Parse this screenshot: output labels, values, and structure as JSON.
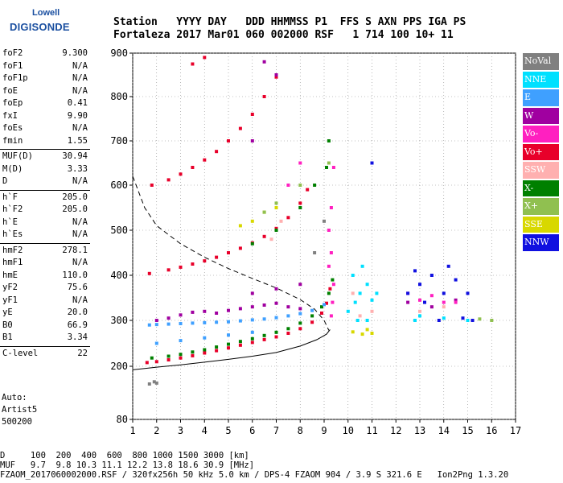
{
  "logo": {
    "line1": "Lowell",
    "line2": "DIGISONDE"
  },
  "header": {
    "labels": "Station   YYYY DAY   DDD HHMMSS P1  FFS S AXN PPS IGA PS",
    "values": "Fortaleza 2017 Mar01 060 002000 RSF   1 714 100 10+ 11"
  },
  "params": {
    "group1": [
      {
        "name": "foF2",
        "value": "9.300"
      },
      {
        "name": "foF1",
        "value": "N/A"
      },
      {
        "name": "foF1p",
        "value": "N/A"
      },
      {
        "name": "foE",
        "value": "N/A"
      },
      {
        "name": "foEp",
        "value": "0.41"
      },
      {
        "name": "fxI",
        "value": "9.90"
      },
      {
        "name": "foEs",
        "value": "N/A"
      },
      {
        "name": "fmin",
        "value": "1.55"
      }
    ],
    "group2": [
      {
        "name": "MUF(D)",
        "value": "30.94"
      },
      {
        "name": "M(D)",
        "value": "3.33"
      },
      {
        "name": "D",
        "value": "N/A"
      }
    ],
    "group3": [
      {
        "name": "h`F",
        "value": "205.0"
      },
      {
        "name": "h`F2",
        "value": "205.0"
      },
      {
        "name": "h`E",
        "value": "N/A"
      },
      {
        "name": "h`Es",
        "value": "N/A"
      }
    ],
    "group4": [
      {
        "name": "hmF2",
        "value": "278.1"
      },
      {
        "name": "hmF1",
        "value": "N/A"
      },
      {
        "name": "hmE",
        "value": "110.0"
      },
      {
        "name": "yF2",
        "value": "75.6"
      },
      {
        "name": "yF1",
        "value": "N/A"
      },
      {
        "name": "yE",
        "value": "20.0"
      },
      {
        "name": "B0",
        "value": "66.9"
      },
      {
        "name": "B1",
        "value": "3.34"
      }
    ],
    "group5": [
      {
        "name": "C-level",
        "value": "22"
      }
    ]
  },
  "auto": {
    "line1": "Auto:",
    "line2": "Artist5",
    "line3": "500200"
  },
  "legend": [
    {
      "label": "NoVal",
      "color": "#808080"
    },
    {
      "label": "NNE",
      "color": "#00e0ff"
    },
    {
      "label": "E",
      "color": "#3fa0ff"
    },
    {
      "label": "W",
      "color": "#a000a0"
    },
    {
      "label": "Vo-",
      "color": "#ff20c0"
    },
    {
      "label": "Vo+",
      "color": "#e8002a"
    },
    {
      "label": "SSW",
      "color": "#ffb0b0"
    },
    {
      "label": "X-",
      "color": "#008000"
    },
    {
      "label": "X+",
      "color": "#90c050"
    },
    {
      "label": "SSE",
      "color": "#d8d800"
    },
    {
      "label": "NNW",
      "color": "#1010e0"
    }
  ],
  "footer": {
    "line1": "D     100  200  400  600  800 1000 1500 3000 [km]",
    "line2": "MUF   9.7  9.8 10.3 11.1 12.2 13.8 18.6 30.9 [MHz]",
    "line3": "FZAOM_2017060002000.RSF / 320fx256h 50 kHz 5.0 km / DPS-4 FZAOM 904 / 3.9 S 321.6 E   Ion2Png 1.3.20"
  },
  "chart_data": {
    "type": "scatter",
    "xlim": [
      1,
      17
    ],
    "ylim": [
      80,
      900
    ],
    "x_ticks": [
      1,
      2,
      3,
      4,
      5,
      6,
      7,
      8,
      9,
      10,
      11,
      12,
      13,
      14,
      15,
      16,
      17
    ],
    "y_ticks": [
      80,
      200,
      300,
      400,
      500,
      600,
      700,
      800,
      900
    ],
    "grid": true,
    "series": [
      {
        "name": "Vo+",
        "color": "#e8002a",
        "points": [
          [
            1.6,
            208
          ],
          [
            2.0,
            210
          ],
          [
            2.5,
            214
          ],
          [
            3.0,
            218
          ],
          [
            3.5,
            223
          ],
          [
            4.0,
            229
          ],
          [
            4.5,
            234
          ],
          [
            5.0,
            240
          ],
          [
            5.5,
            246
          ],
          [
            6.0,
            252
          ],
          [
            6.5,
            258
          ],
          [
            7.0,
            264
          ],
          [
            7.5,
            272
          ],
          [
            8.0,
            282
          ],
          [
            8.5,
            296
          ],
          [
            8.9,
            316
          ],
          [
            9.1,
            338
          ],
          [
            9.25,
            370
          ],
          [
            1.7,
            404
          ],
          [
            2.5,
            412
          ],
          [
            3.0,
            418
          ],
          [
            3.5,
            425
          ],
          [
            4.0,
            432
          ],
          [
            4.5,
            440
          ],
          [
            5.0,
            450
          ],
          [
            5.5,
            460
          ],
          [
            6.0,
            472
          ],
          [
            6.5,
            486
          ],
          [
            7.0,
            504
          ],
          [
            7.5,
            528
          ],
          [
            8.0,
            560
          ],
          [
            8.3,
            590
          ],
          [
            1.8,
            600
          ],
          [
            2.5,
            612
          ],
          [
            3.0,
            625
          ],
          [
            3.5,
            640
          ],
          [
            4.0,
            657
          ],
          [
            4.5,
            676
          ],
          [
            5.0,
            700
          ],
          [
            5.5,
            728
          ],
          [
            6.0,
            760
          ],
          [
            6.5,
            800
          ],
          [
            7.0,
            845
          ],
          [
            3.5,
            875
          ],
          [
            4.0,
            890
          ]
        ]
      },
      {
        "name": "X-",
        "color": "#008000",
        "points": [
          [
            1.8,
            218
          ],
          [
            2.5,
            222
          ],
          [
            3.0,
            226
          ],
          [
            3.5,
            231
          ],
          [
            4.0,
            236
          ],
          [
            4.5,
            242
          ],
          [
            5.0,
            248
          ],
          [
            5.5,
            254
          ],
          [
            6.0,
            260
          ],
          [
            6.5,
            267
          ],
          [
            7.0,
            274
          ],
          [
            7.5,
            282
          ],
          [
            8.0,
            294
          ],
          [
            8.5,
            310
          ],
          [
            8.9,
            330
          ],
          [
            9.2,
            360
          ],
          [
            9.35,
            390
          ],
          [
            6.0,
            470
          ],
          [
            7.0,
            500
          ],
          [
            8.0,
            550
          ],
          [
            8.6,
            600
          ],
          [
            9.1,
            640
          ],
          [
            9.2,
            700
          ]
        ]
      },
      {
        "name": "E",
        "color": "#3fa0ff",
        "points": [
          [
            1.7,
            290
          ],
          [
            2.0,
            291
          ],
          [
            2.5,
            292
          ],
          [
            3.0,
            293
          ],
          [
            3.5,
            294
          ],
          [
            4.0,
            295
          ],
          [
            4.5,
            296
          ],
          [
            5.0,
            297
          ],
          [
            5.5,
            299
          ],
          [
            6.0,
            301
          ],
          [
            6.5,
            303
          ],
          [
            7.0,
            306
          ],
          [
            7.5,
            310
          ],
          [
            8.0,
            315
          ],
          [
            8.5,
            322
          ],
          [
            9.0,
            335
          ],
          [
            2.0,
            250
          ],
          [
            3.0,
            256
          ],
          [
            4.0,
            262
          ],
          [
            5.0,
            268
          ],
          [
            6.0,
            274
          ]
        ]
      },
      {
        "name": "W",
        "color": "#a000a0",
        "points": [
          [
            2.0,
            300
          ],
          [
            2.5,
            305
          ],
          [
            3.0,
            312
          ],
          [
            3.5,
            318
          ],
          [
            4.0,
            320
          ],
          [
            4.5,
            316
          ],
          [
            5.0,
            322
          ],
          [
            5.5,
            326
          ],
          [
            6.0,
            330
          ],
          [
            6.5,
            334
          ],
          [
            7.0,
            338
          ],
          [
            7.5,
            330
          ],
          [
            8.0,
            326
          ],
          [
            6.0,
            360
          ],
          [
            7.0,
            370
          ],
          [
            8.0,
            380
          ],
          [
            12.5,
            340
          ],
          [
            13.5,
            330
          ],
          [
            14.5,
            345
          ],
          [
            6.5,
            880
          ],
          [
            7.0,
            850
          ],
          [
            6.0,
            700
          ]
        ]
      },
      {
        "name": "Vo-",
        "color": "#ff20c0",
        "points": [
          [
            9.3,
            310
          ],
          [
            9.35,
            340
          ],
          [
            9.4,
            380
          ],
          [
            9.2,
            420
          ],
          [
            9.3,
            450
          ],
          [
            9.2,
            500
          ],
          [
            9.3,
            550
          ],
          [
            9.4,
            640
          ],
          [
            13.0,
            345
          ],
          [
            13.5,
            355
          ],
          [
            14.0,
            340
          ],
          [
            12.5,
            360
          ],
          [
            14.5,
            340
          ],
          [
            7.5,
            600
          ],
          [
            8.0,
            650
          ]
        ]
      },
      {
        "name": "NNE",
        "color": "#00e0ff",
        "points": [
          [
            10.0,
            320
          ],
          [
            10.3,
            340
          ],
          [
            10.5,
            360
          ],
          [
            10.8,
            380
          ],
          [
            11.0,
            345
          ],
          [
            10.2,
            400
          ],
          [
            10.6,
            420
          ],
          [
            10.4,
            300
          ],
          [
            11.2,
            360
          ],
          [
            10.8,
            300
          ],
          [
            13.0,
            310
          ],
          [
            14.0,
            305
          ],
          [
            15.0,
            300
          ],
          [
            12.8,
            300
          ]
        ]
      },
      {
        "name": "NNW",
        "color": "#1010e0",
        "points": [
          [
            12.5,
            360
          ],
          [
            13.0,
            380
          ],
          [
            13.5,
            400
          ],
          [
            14.0,
            360
          ],
          [
            14.5,
            390
          ],
          [
            15.0,
            360
          ],
          [
            13.2,
            340
          ],
          [
            14.2,
            420
          ],
          [
            12.8,
            410
          ],
          [
            13.8,
            300
          ],
          [
            14.8,
            305
          ],
          [
            15.2,
            300
          ],
          [
            11.0,
            650
          ]
        ]
      },
      {
        "name": "SSE",
        "color": "#d8d800",
        "points": [
          [
            10.2,
            275
          ],
          [
            10.6,
            270
          ],
          [
            11.0,
            272
          ],
          [
            10.8,
            280
          ],
          [
            6.0,
            520
          ],
          [
            6.5,
            540
          ],
          [
            7.0,
            550
          ],
          [
            5.5,
            510
          ]
        ]
      },
      {
        "name": "SSW",
        "color": "#ffb0b0",
        "points": [
          [
            10.5,
            310
          ],
          [
            11.0,
            320
          ],
          [
            10.2,
            360
          ],
          [
            13.0,
            320
          ],
          [
            14.0,
            330
          ],
          [
            6.8,
            480
          ],
          [
            7.2,
            520
          ]
        ]
      },
      {
        "name": "X+",
        "color": "#90c050",
        "points": [
          [
            6.5,
            540
          ],
          [
            7.0,
            560
          ],
          [
            8.0,
            600
          ],
          [
            9.2,
            650
          ],
          [
            16.0,
            300
          ],
          [
            15.5,
            303
          ]
        ]
      },
      {
        "name": "NoVal",
        "color": "#808080",
        "points": [
          [
            1.7,
            160
          ],
          [
            1.9,
            165
          ],
          [
            2.0,
            162
          ],
          [
            8.6,
            450
          ],
          [
            9.0,
            520
          ]
        ]
      }
    ],
    "model_curves": [
      {
        "style": "solid",
        "points": [
          [
            1,
            192
          ],
          [
            2,
            198
          ],
          [
            3,
            203
          ],
          [
            4,
            209
          ],
          [
            5,
            215
          ],
          [
            6,
            222
          ],
          [
            7,
            230
          ],
          [
            8,
            244
          ],
          [
            8.7,
            258
          ],
          [
            9.1,
            270
          ],
          [
            9.25,
            280
          ]
        ]
      },
      {
        "style": "dashed",
        "points": [
          [
            1,
            620
          ],
          [
            1.5,
            550
          ],
          [
            2,
            510
          ],
          [
            3,
            470
          ],
          [
            4,
            440
          ],
          [
            5,
            415
          ],
          [
            6,
            393
          ],
          [
            7,
            372
          ],
          [
            8,
            346
          ],
          [
            8.6,
            325
          ],
          [
            9,
            300
          ],
          [
            9.2,
            278
          ]
        ]
      }
    ]
  }
}
